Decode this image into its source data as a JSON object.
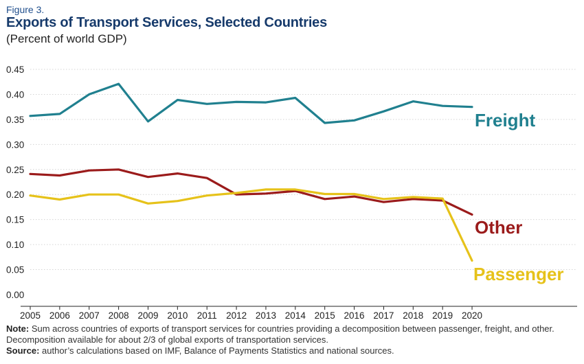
{
  "figure_label": "Figure 3.",
  "notes": {
    "note_label": "Note:",
    "note_text": "Sum across countries of exports of transport services for countries providing a decomposition between passenger, freight, and other. Decomposition available for about 2/3 of global exports of transportation services.",
    "source_label": "Source:",
    "source_text": "author’s calculations based on IMF, Balance of Payments Statistics and national sources."
  },
  "chart_data": {
    "type": "line",
    "title": "Exports of Transport Services, Selected Countries",
    "subtitle": "(Percent of world GDP)",
    "xlabel": "",
    "ylabel": "",
    "x": [
      "2005",
      "2006",
      "2007",
      "2008",
      "2009",
      "2010",
      "2011",
      "2012",
      "2013",
      "2014",
      "2015",
      "2016",
      "2017",
      "2018",
      "2019",
      "2020"
    ],
    "ylim": [
      0,
      0.45
    ],
    "yticks": [
      "0.00",
      "0.05",
      "0.10",
      "0.15",
      "0.20",
      "0.25",
      "0.30",
      "0.35",
      "0.40",
      "0.45"
    ],
    "grid": true,
    "legend": "direct labels at line ends",
    "series": [
      {
        "name": "Freight",
        "color": "#20808f",
        "values": [
          0.357,
          0.361,
          0.4,
          0.421,
          0.346,
          0.389,
          0.381,
          0.385,
          0.384,
          0.393,
          0.343,
          0.348,
          0.366,
          0.386,
          0.377,
          0.375
        ]
      },
      {
        "name": "Other",
        "color": "#9b1b1b",
        "values": [
          0.241,
          0.238,
          0.248,
          0.25,
          0.235,
          0.242,
          0.233,
          0.2,
          0.202,
          0.207,
          0.191,
          0.196,
          0.185,
          0.191,
          0.188,
          0.16
        ]
      },
      {
        "name": "Passenger",
        "color": "#e6c21a",
        "values": [
          0.198,
          0.19,
          0.2,
          0.2,
          0.182,
          0.187,
          0.198,
          0.203,
          0.21,
          0.21,
          0.201,
          0.201,
          0.191,
          0.195,
          0.192,
          0.068
        ]
      }
    ]
  }
}
